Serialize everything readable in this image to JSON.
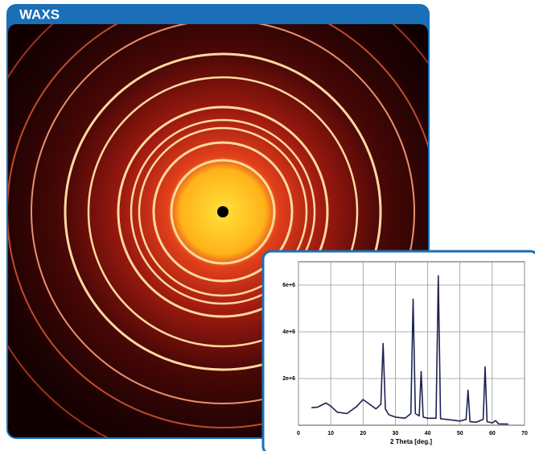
{
  "header": {
    "title": "WAXS"
  },
  "chart_data": {
    "type": "line",
    "xlabel": "2 Theta [deg.]",
    "x": [
      4,
      6,
      8.5,
      10,
      12,
      15,
      18,
      20,
      22,
      24,
      25.5,
      26.2,
      26.9,
      28,
      30,
      33,
      34.8,
      35.5,
      36.2,
      37.4,
      38,
      38.6,
      40,
      42.6,
      43.3,
      44,
      47,
      50,
      51.9,
      52.5,
      53.1,
      55,
      57.2,
      57.8,
      58.4,
      60,
      61,
      62,
      65
    ],
    "values": [
      750000,
      780000,
      950000,
      820000,
      560000,
      500000,
      800000,
      1100000,
      900000,
      700000,
      900000,
      3500000,
      700000,
      450000,
      350000,
      300000,
      500000,
      5400000,
      500000,
      400000,
      2300000,
      350000,
      300000,
      300000,
      6400000,
      280000,
      230000,
      180000,
      250000,
      1500000,
      150000,
      130000,
      250000,
      2500000,
      150000,
      100000,
      200000,
      60000,
      50000
    ],
    "color": "#1c2350",
    "xlim": [
      0,
      70
    ],
    "xticks": [
      0,
      10,
      20,
      30,
      40,
      50,
      60,
      70
    ],
    "ylim": [
      0,
      7000000
    ],
    "yticks": [
      {
        "value": 2000000,
        "label": "2e+6"
      },
      {
        "value": 4000000,
        "label": "4e+6"
      },
      {
        "value": 6000000,
        "label": "6e+6"
      }
    ],
    "grid": true
  }
}
